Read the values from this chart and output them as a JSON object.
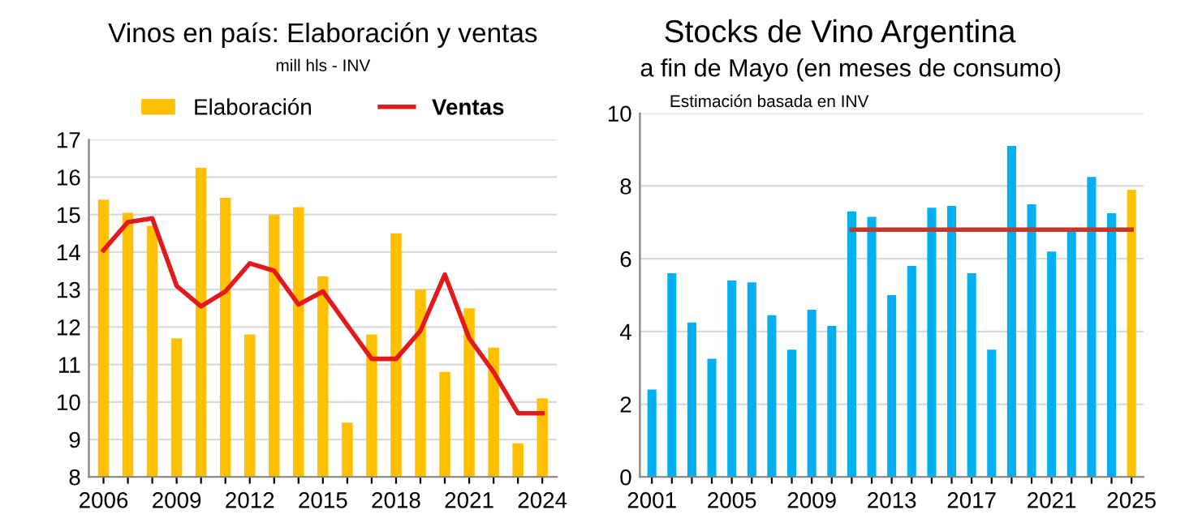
{
  "chart_data": [
    {
      "type": "bar",
      "title": "Vinos en país: Elaboración y ventas",
      "subtitle": "mill hls - INV",
      "categories": [
        "2006",
        null,
        null,
        "2009",
        null,
        null,
        "2012",
        null,
        null,
        "2015",
        null,
        null,
        "2018",
        null,
        null,
        "2021",
        null,
        null,
        "2024"
      ],
      "series": [
        {
          "name": "Elaboración",
          "color": "#ffc000",
          "values": [
            15.4,
            15.05,
            14.7,
            11.7,
            16.25,
            15.45,
            11.8,
            15.0,
            15.2,
            13.35,
            9.45,
            11.8,
            14.5,
            13.0,
            10.8,
            12.5,
            11.45,
            8.9,
            10.1
          ]
        },
        {
          "name": "Ventas",
          "type": "line",
          "color": "#e31a1c",
          "values": [
            14.05,
            14.8,
            14.9,
            13.1,
            12.55,
            12.95,
            13.7,
            13.5,
            12.6,
            12.95,
            12.05,
            11.15,
            11.15,
            11.9,
            13.4,
            11.7,
            10.8,
            9.7,
            9.7
          ]
        }
      ],
      "ylim": [
        8,
        17
      ],
      "yticks": [
        8,
        9,
        10,
        11,
        12,
        13,
        14,
        15,
        16,
        17
      ],
      "grid": "y",
      "legend": "top"
    },
    {
      "type": "bar",
      "title": "Stocks de Vino Argentina",
      "subtitle": "a fin de Mayo (en meses de consumo)",
      "annotations": [
        "Estimación basada en INV"
      ],
      "categories": [
        "2001",
        null,
        null,
        null,
        "2005",
        null,
        null,
        null,
        "2009",
        null,
        null,
        null,
        "2013",
        null,
        null,
        null,
        "2017",
        null,
        null,
        null,
        "2021",
        null,
        null,
        null,
        "2025"
      ],
      "series": [
        {
          "color": "#00b0f0",
          "colors": [
            "#00b0f0",
            "#00b0f0",
            "#00b0f0",
            "#00b0f0",
            "#00b0f0",
            "#00b0f0",
            "#00b0f0",
            "#00b0f0",
            "#00b0f0",
            "#00b0f0",
            "#00b0f0",
            "#00b0f0",
            "#00b0f0",
            "#00b0f0",
            "#00b0f0",
            "#00b0f0",
            "#00b0f0",
            "#00b0f0",
            "#00b0f0",
            "#00b0f0",
            "#00b0f0",
            "#00b0f0",
            "#00b0f0",
            "#00b0f0",
            "#ffc000"
          ],
          "values": [
            2.4,
            5.6,
            4.25,
            3.25,
            5.4,
            5.35,
            4.45,
            3.5,
            4.6,
            4.15,
            7.3,
            7.15,
            5.0,
            5.8,
            7.4,
            7.45,
            5.6,
            3.5,
            9.1,
            7.5,
            6.2,
            6.8,
            8.25,
            7.25,
            7.9
          ]
        },
        {
          "type": "line",
          "color": "#c0392b",
          "values": [
            null,
            null,
            null,
            null,
            null,
            null,
            null,
            null,
            null,
            null,
            6.8,
            6.8,
            6.8,
            6.8,
            6.8,
            6.8,
            6.8,
            6.8,
            6.8,
            6.8,
            6.8,
            6.8,
            6.8,
            6.8,
            6.8
          ]
        }
      ],
      "ylim": [
        0,
        10
      ],
      "yticks": [
        0,
        2,
        4,
        6,
        8,
        10
      ],
      "grid": "y",
      "legend": false
    }
  ]
}
